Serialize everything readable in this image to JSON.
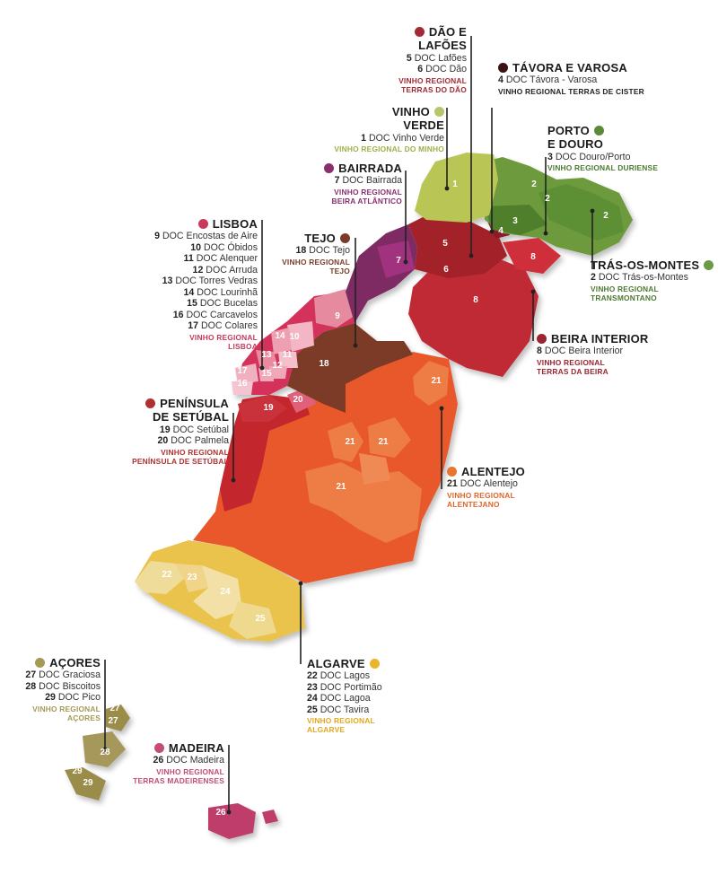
{
  "regions": [
    {
      "id": "dao",
      "title_lines": [
        "DÃO E",
        "LAFÕES"
      ],
      "dot": "#a32a35",
      "vr_color": "#a32a35",
      "docs": [
        {
          "n": "5",
          "name": "DOC Lafões"
        },
        {
          "n": "6",
          "name": "DOC Dão"
        }
      ],
      "vr_lines": [
        "VINHO REGIONAL",
        "TERRAS DO DÃO"
      ]
    },
    {
      "id": "tavora",
      "title_lines": [
        "TÁVORA E VAROSA"
      ],
      "dot": "#3a1216",
      "vr_color": "#222222",
      "docs": [
        {
          "n": "4",
          "name": "DOC Távora - Varosa"
        }
      ],
      "vr_lines": [
        "VINHO REGIONAL TERRAS DE CISTER"
      ]
    },
    {
      "id": "vinhoverde",
      "title_lines": [
        "VINHO",
        "VERDE"
      ],
      "dot": "#b6c76a",
      "vr_color": "#9bb146",
      "docs": [
        {
          "n": "1",
          "name": "DOC Vinho Verde"
        }
      ],
      "vr_lines": [
        "VINHO REGIONAL DO MINHO"
      ]
    },
    {
      "id": "porto",
      "title_lines": [
        "PORTO",
        "E DOURO"
      ],
      "dot": "#5b8a3a",
      "vr_color": "#4d7a30",
      "docs": [
        {
          "n": "3",
          "name": "DOC Douro/Porto"
        }
      ],
      "vr_lines": [
        "VINHO REGIONAL DURIENSE"
      ]
    },
    {
      "id": "bairrada",
      "title_lines": [
        "BAIRRADA"
      ],
      "dot": "#8a2f6e",
      "vr_color": "#8a2f6e",
      "docs": [
        {
          "n": "7",
          "name": "DOC Bairrada"
        }
      ],
      "vr_lines": [
        "VINHO REGIONAL",
        "BEIRA ATLÂNTICO"
      ]
    },
    {
      "id": "lisboa",
      "title_lines": [
        "LISBOA"
      ],
      "dot": "#c73a5e",
      "vr_color": "#c73a5e",
      "docs": [
        {
          "n": "9",
          "name": "DOC Encostas de Aire"
        },
        {
          "n": "10",
          "name": "DOC Óbidos"
        },
        {
          "n": "11",
          "name": "DOC Alenquer"
        },
        {
          "n": "12",
          "name": "DOC Arruda"
        },
        {
          "n": "13",
          "name": "DOC Torres Vedras"
        },
        {
          "n": "14",
          "name": "DOC Lourinhã"
        },
        {
          "n": "15",
          "name": "DOC Bucelas"
        },
        {
          "n": "16",
          "name": "DOC Carcavelos"
        },
        {
          "n": "17",
          "name": "DOC Colares"
        }
      ],
      "vr_lines": [
        "VINHO REGIONAL",
        "LISBOA"
      ]
    },
    {
      "id": "tejo",
      "title_lines": [
        "TEJO"
      ],
      "dot": "#7a3b2a",
      "vr_color": "#7a3b2a",
      "docs": [
        {
          "n": "18",
          "name": "DOC Tejo"
        }
      ],
      "vr_lines": [
        "VINHO REGIONAL",
        "TEJO"
      ]
    },
    {
      "id": "tras",
      "title_lines": [
        "TRÁS-OS-MONTES"
      ],
      "dot": "#6a9a45",
      "vr_color": "#4d7a30",
      "docs": [
        {
          "n": "2",
          "name": "DOC Trás-os-Montes"
        }
      ],
      "vr_lines": [
        "VINHO REGIONAL",
        "TRANSMONTANO"
      ]
    },
    {
      "id": "beira",
      "title_lines": [
        "BEIRA INTERIOR"
      ],
      "dot": "#9a2430",
      "vr_color": "#9a2430",
      "docs": [
        {
          "n": "8",
          "name": "DOC Beira Interior"
        }
      ],
      "vr_lines": [
        "VINHO REGIONAL",
        "TERRAS DA BEIRA"
      ]
    },
    {
      "id": "setubal",
      "title_lines": [
        "PENÍNSULA",
        "DE SETÚBAL"
      ],
      "dot": "#b03030",
      "vr_color": "#b03030",
      "docs": [
        {
          "n": "19",
          "name": "DOC Setúbal"
        },
        {
          "n": "20",
          "name": "DOC Palmela"
        }
      ],
      "vr_lines": [
        "VINHO REGIONAL",
        "PENÍNSULA DE SETÚBAL"
      ]
    },
    {
      "id": "alentejo",
      "title_lines": [
        "ALENTEJO"
      ],
      "dot": "#e8762e",
      "vr_color": "#e0662a",
      "docs": [
        {
          "n": "21",
          "name": "DOC Alentejo"
        }
      ],
      "vr_lines": [
        "VINHO REGIONAL",
        "ALENTEJANO"
      ]
    },
    {
      "id": "acores",
      "title_lines": [
        "AÇORES"
      ],
      "dot": "#a59a55",
      "vr_color": "#a59a55",
      "docs": [
        {
          "n": "27",
          "name": "DOC Graciosa"
        },
        {
          "n": "28",
          "name": "DOC Biscoitos"
        },
        {
          "n": "29",
          "name": "DOC Pico"
        }
      ],
      "vr_lines": [
        "VINHO REGIONAL",
        "AÇORES"
      ]
    },
    {
      "id": "algarve",
      "title_lines": [
        "ALGARVE"
      ],
      "dot": "#e9b52c",
      "vr_color": "#e0a820",
      "docs": [
        {
          "n": "22",
          "name": "DOC Lagos"
        },
        {
          "n": "23",
          "name": "DOC Portimão"
        },
        {
          "n": "24",
          "name": "DOC Lagoa"
        },
        {
          "n": "25",
          "name": "DOC Tavira"
        }
      ],
      "vr_lines": [
        "VINHO REGIONAL",
        "ALGARVE"
      ]
    },
    {
      "id": "madeira",
      "title_lines": [
        "MADEIRA"
      ],
      "dot": "#c44c78",
      "vr_color": "#c44c78",
      "docs": [
        {
          "n": "26",
          "name": "DOC Madeira"
        }
      ],
      "vr_lines": [
        "VINHO REGIONAL",
        "TERRAS MADEIRENSES"
      ]
    }
  ],
  "map_numbers": [
    "1",
    "2",
    "3",
    "4",
    "5",
    "6",
    "7",
    "8",
    "9",
    "10",
    "11",
    "12",
    "13",
    "14",
    "15",
    "16",
    "17",
    "18",
    "19",
    "20",
    "21",
    "22",
    "23",
    "24",
    "25",
    "26",
    "27",
    "28",
    "29"
  ],
  "colors": {
    "vinho_verde": "#b9c654",
    "douro": "#6c9a3c",
    "tras_os_montes": "#5d8f35",
    "tavora": "#a32a35",
    "dao": "#a3212c",
    "bairrada": "#7e2a63",
    "beira_interior": "#c02a34",
    "lisboa": "#d4305a",
    "lisboa_light": "#e68aa0",
    "tejo": "#7b3b26",
    "setubal": "#c4262e",
    "alentejo": "#e8582a",
    "alentejo_light": "#ee7b45",
    "algarve": "#e8c24e",
    "algarve_light": "#f0dc9a",
    "acores": "#9a8c4a",
    "madeira": "#bf3e6a"
  }
}
